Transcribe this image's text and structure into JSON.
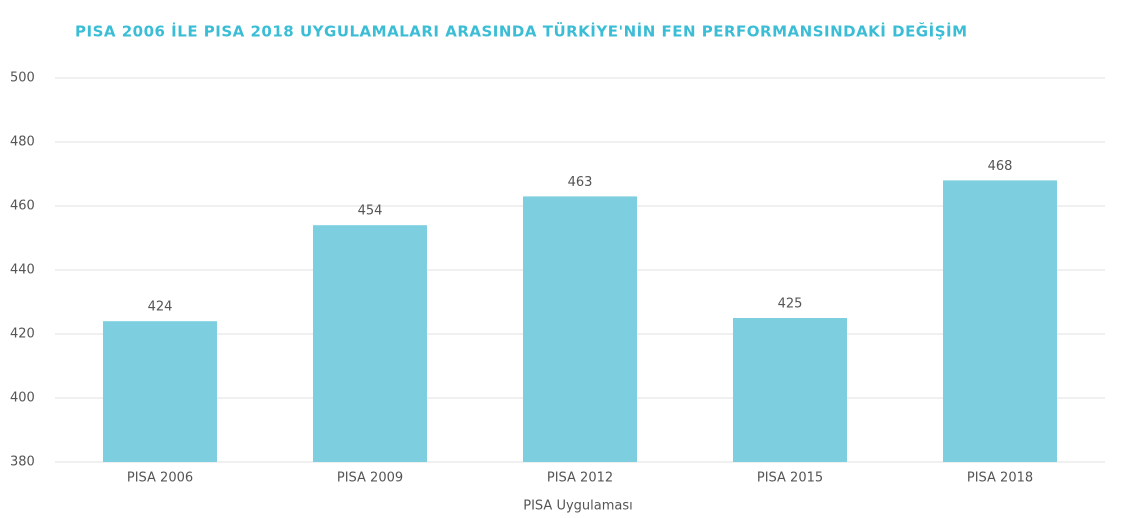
{
  "chart_data": {
    "type": "bar",
    "title": "PISA 2006 İLE PISA 2018 UYGULAMALARI ARASINDA TÜRKİYE'NİN FEN PERFORMANSINDAKİ DEĞİŞİM",
    "x_label": "PISA Uygulaması",
    "categories": [
      "PISA 2006",
      "PISA 2009",
      "PISA 2012",
      "PISA 2015",
      "PISA 2018"
    ],
    "values": [
      424,
      454,
      463,
      425,
      468
    ],
    "color": "#7dcfdf",
    "ylim": [
      380,
      500
    ],
    "yticks": [
      380,
      400,
      420,
      440,
      460,
      480,
      500
    ],
    "grid": true
  }
}
